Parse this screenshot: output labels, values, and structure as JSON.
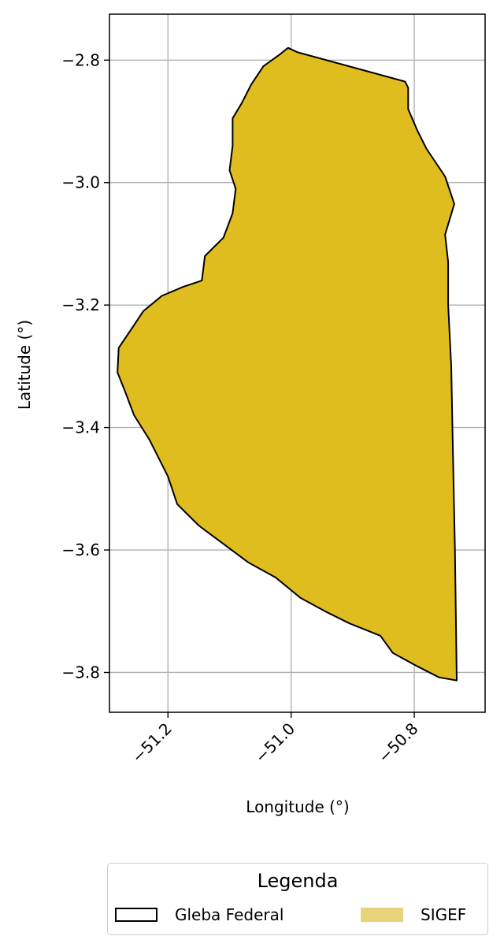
{
  "legend": {
    "title": "Legenda",
    "entries": [
      {
        "label": "Gleba Federal",
        "fill": "#ffffff",
        "edge": "#000000"
      },
      {
        "label": "SIGEF",
        "fill": "#e8d27a",
        "edge": "#e8d27a"
      }
    ]
  },
  "colors": {
    "area_fill": "#e0bd1f",
    "area_edge": "#000000",
    "parcel_edge": "#0000ff",
    "grid": "#b0b0b0"
  },
  "chart_data": {
    "type": "map",
    "xlabel": "Longitude (°)",
    "ylabel": "Latitude (°)",
    "xlim": [
      -51.295,
      -50.685
    ],
    "ylim": [
      -3.865,
      -2.725
    ],
    "xticks": [
      -51.2,
      -51.0,
      -50.8
    ],
    "xtick_labels": [
      "−51.2",
      "−51.0",
      "−50.8"
    ],
    "yticks": [
      -2.8,
      -3.0,
      -3.2,
      -3.4,
      -3.6,
      -3.8
    ],
    "ytick_labels": [
      "−2.8",
      "−3.0",
      "−3.2",
      "−3.4",
      "−3.6",
      "−3.8"
    ],
    "grid": true,
    "gleba_outline": [
      [
        -51.005,
        -2.78
      ],
      [
        -50.99,
        -2.787
      ],
      [
        -50.815,
        -2.835
      ],
      [
        -50.81,
        -2.845
      ],
      [
        -50.81,
        -2.88
      ],
      [
        -50.795,
        -2.915
      ],
      [
        -50.78,
        -2.945
      ],
      [
        -50.75,
        -2.99
      ],
      [
        -50.735,
        -3.035
      ],
      [
        -50.75,
        -3.085
      ],
      [
        -50.745,
        -3.13
      ],
      [
        -50.745,
        -3.2
      ],
      [
        -50.74,
        -3.3
      ],
      [
        -50.737,
        -3.45
      ],
      [
        -50.734,
        -3.6
      ],
      [
        -50.731,
        -3.813
      ],
      [
        -50.76,
        -3.808
      ],
      [
        -50.795,
        -3.79
      ],
      [
        -50.835,
        -3.768
      ],
      [
        -50.855,
        -3.74
      ],
      [
        -50.905,
        -3.72
      ],
      [
        -50.945,
        -3.7
      ],
      [
        -50.985,
        -3.678
      ],
      [
        -51.025,
        -3.645
      ],
      [
        -51.07,
        -3.62
      ],
      [
        -51.11,
        -3.59
      ],
      [
        -51.15,
        -3.56
      ],
      [
        -51.185,
        -3.525
      ],
      [
        -51.2,
        -3.48
      ],
      [
        -51.23,
        -3.42
      ],
      [
        -51.255,
        -3.38
      ],
      [
        -51.27,
        -3.34
      ],
      [
        -51.282,
        -3.31
      ],
      [
        -51.28,
        -3.27
      ],
      [
        -51.26,
        -3.24
      ],
      [
        -51.24,
        -3.21
      ],
      [
        -51.21,
        -3.185
      ],
      [
        -51.175,
        -3.17
      ],
      [
        -51.145,
        -3.16
      ],
      [
        -51.14,
        -3.12
      ],
      [
        -51.11,
        -3.09
      ],
      [
        -51.095,
        -3.05
      ],
      [
        -51.09,
        -3.01
      ],
      [
        -51.1,
        -2.98
      ],
      [
        -51.095,
        -2.94
      ],
      [
        -51.095,
        -2.895
      ],
      [
        -51.08,
        -2.87
      ],
      [
        -51.065,
        -2.84
      ],
      [
        -51.045,
        -2.81
      ],
      [
        -51.02,
        -2.792
      ]
    ]
  }
}
